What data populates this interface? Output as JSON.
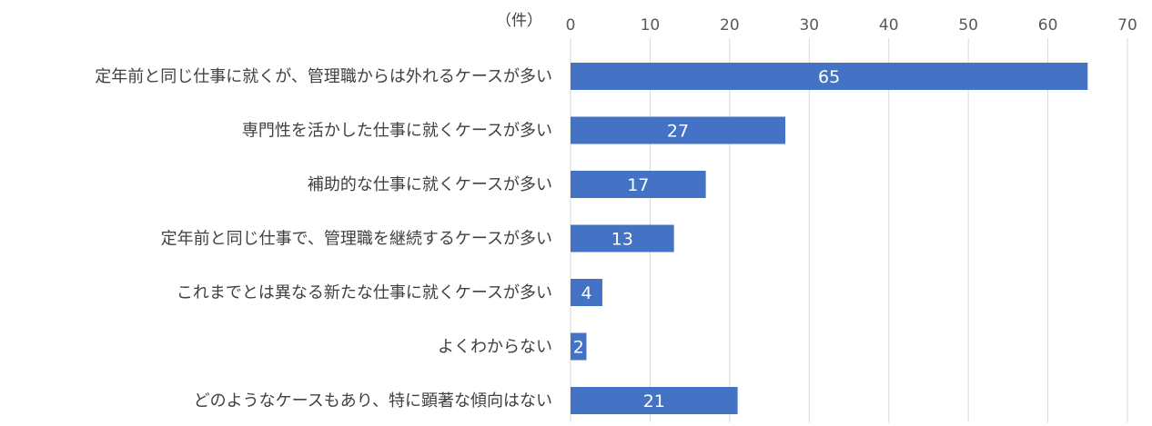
{
  "chart_data": {
    "type": "bar",
    "orientation": "horizontal",
    "unit_label": "（件）",
    "categories": [
      "定年前と同じ仕事に就くが、管理職からは外れるケースが多い",
      "専門性を活かした仕事に就くケースが多い",
      "補助的な仕事に就くケースが多い",
      "定年前と同じ仕事で、管理職を継続するケースが多い",
      "これまでとは異なる新たな仕事に就くケースが多い",
      "よくわからない",
      "どのようなケースもあり、特に顕著な傾向はない"
    ],
    "values": [
      65,
      27,
      17,
      13,
      4,
      2,
      21
    ],
    "xlim": [
      0,
      70
    ],
    "xticks": [
      0,
      10,
      20,
      30,
      40,
      50,
      60,
      70
    ],
    "axis_position": "top",
    "grid": true,
    "legend": "none",
    "data_labels": true,
    "colors": {
      "bar": "#4472C4",
      "grid": "#D9D9D9",
      "data_label": "#FFFFFF"
    }
  }
}
